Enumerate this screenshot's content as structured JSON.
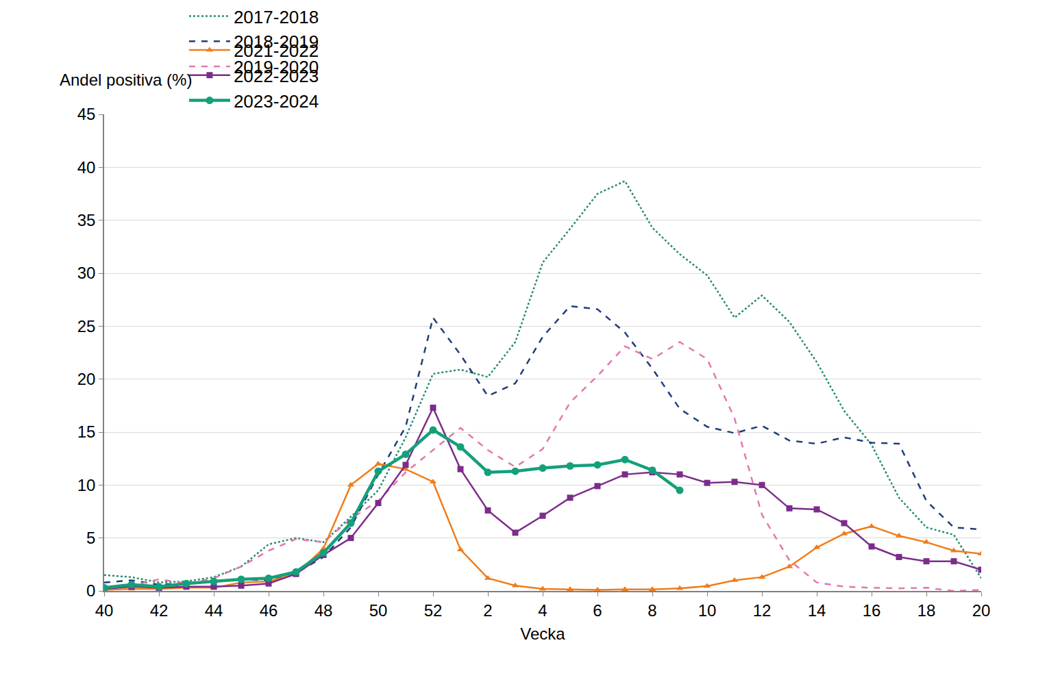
{
  "chart_data": {
    "type": "line",
    "y_label": "Andel positiva (%)",
    "x_label": "Vecka",
    "categories": [
      "40",
      null,
      "42",
      null,
      "44",
      null,
      "46",
      null,
      "48",
      null,
      "50",
      null,
      "52",
      null,
      "2",
      null,
      "4",
      null,
      "6",
      null,
      "8",
      null,
      "10",
      null,
      "12",
      null,
      "14",
      null,
      "16",
      null,
      "18",
      null,
      "20"
    ],
    "ylim": [
      0,
      45
    ],
    "yticks": [
      0,
      5,
      10,
      15,
      20,
      25,
      30,
      35,
      40,
      45
    ],
    "grid": true,
    "legend": "top",
    "series": [
      {
        "name": "2017-2018",
        "color": "#2a8c72",
        "line_style": "dot",
        "marker": "none",
        "values": [
          1.5,
          1.3,
          0.8,
          0.9,
          1.3,
          2.3,
          4.4,
          5.0,
          4.6,
          7.0,
          9.5,
          14.5,
          20.5,
          20.9,
          20.2,
          23.5,
          31.0,
          34.2,
          37.5,
          38.7,
          34.3,
          31.8,
          29.8,
          25.8,
          27.9,
          25.4,
          21.6,
          17.0,
          13.8,
          8.8,
          6.0,
          5.3,
          1.2
        ]
      },
      {
        "name": "2018-2019",
        "color": "#1f3d7a",
        "line_style": "dash",
        "marker": "none",
        "values": [
          0.8,
          1.0,
          0.6,
          0.7,
          0.9,
          1.1,
          1.0,
          1.7,
          3.2,
          6.0,
          11.0,
          15.5,
          25.8,
          22.3,
          18.4,
          19.6,
          24.0,
          26.9,
          26.6,
          24.4,
          21.0,
          17.2,
          15.5,
          14.9,
          15.6,
          14.2,
          13.9,
          14.5,
          14.0,
          13.9,
          8.5,
          6.0,
          5.8
        ]
      },
      {
        "name": "2019-2020",
        "color": "#e377b0",
        "line_style": "dash",
        "marker": "none",
        "values": [
          0.2,
          0.5,
          1.1,
          0.7,
          1.2,
          2.3,
          3.8,
          4.9,
          4.6,
          6.8,
          8.5,
          11.2,
          13.3,
          15.4,
          13.3,
          11.7,
          13.4,
          17.8,
          20.3,
          23.1,
          21.9,
          23.5,
          21.9,
          16.3,
          7.2,
          2.9,
          0.8,
          0.4,
          0.3,
          0.25,
          0.3,
          0.0,
          0.1
        ]
      },
      {
        "name": "2021-2022",
        "color": "#f07d1a",
        "line_style": "solid",
        "marker": "triangle-up",
        "values": [
          0.1,
          0.2,
          0.2,
          0.3,
          0.3,
          0.8,
          0.9,
          1.6,
          4.0,
          10.0,
          12.0,
          11.5,
          10.3,
          3.9,
          1.2,
          0.5,
          0.2,
          0.15,
          0.1,
          0.15,
          0.15,
          0.25,
          0.45,
          1.0,
          1.3,
          2.3,
          4.1,
          5.4,
          6.1,
          5.2,
          4.6,
          3.8,
          3.5
        ]
      },
      {
        "name": "2022-2023",
        "color": "#7b2d8b",
        "line_style": "solid",
        "marker": "square",
        "values": [
          0.2,
          0.4,
          0.3,
          0.4,
          0.4,
          0.5,
          0.7,
          1.6,
          3.4,
          5.0,
          8.3,
          11.9,
          17.3,
          11.5,
          7.6,
          5.5,
          7.1,
          8.8,
          9.9,
          11.0,
          11.2,
          11.0,
          10.2,
          10.3,
          10.0,
          7.8,
          7.7,
          6.4,
          4.2,
          3.2,
          2.8,
          2.8,
          2.0
        ]
      },
      {
        "name": "2023-2024",
        "color": "#14a07a",
        "line_style": "solid",
        "marker": "circle",
        "values": [
          0.3,
          0.6,
          0.4,
          0.7,
          0.9,
          1.1,
          1.2,
          1.8,
          3.6,
          6.4,
          11.3,
          12.9,
          15.2,
          13.6,
          11.2,
          11.3,
          11.6,
          11.8,
          11.9,
          12.4,
          11.4,
          9.5,
          null,
          null,
          null,
          null,
          null,
          null,
          null,
          null,
          null,
          null,
          null
        ]
      }
    ]
  }
}
